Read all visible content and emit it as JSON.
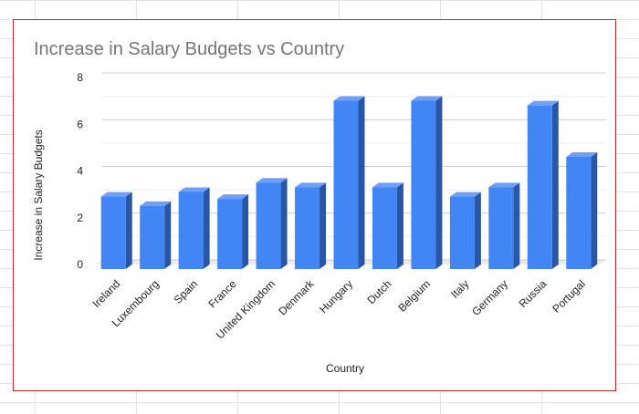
{
  "chart_data": {
    "type": "bar",
    "title": "Increase in Salary Budgets vs Country",
    "xlabel": "Country",
    "ylabel": "Increase in Salary Budgets",
    "categories": [
      "Ireland",
      "Luxembourg",
      "Spain",
      "France",
      "United Kingdom",
      "Denmark",
      "Hungary",
      "Dutch",
      "Belgium",
      "Italy",
      "Germany",
      "Russia",
      "Portugal"
    ],
    "values": [
      3.1,
      2.7,
      3.3,
      3.0,
      3.7,
      3.5,
      7.2,
      3.5,
      7.2,
      3.1,
      3.5,
      7.0,
      4.8
    ],
    "ylim": [
      0,
      8
    ],
    "yticks": [
      0,
      2,
      4,
      6,
      8
    ],
    "grid": true,
    "colors": {
      "front": "#4285f4",
      "side": "#2a56a8",
      "top": "#6fa0f6"
    }
  }
}
